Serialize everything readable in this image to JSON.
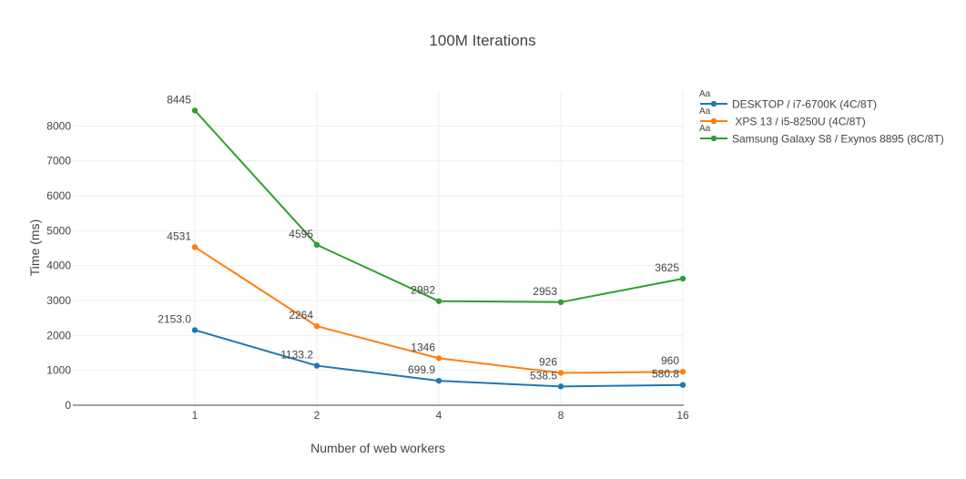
{
  "chart_data": {
    "type": "line",
    "title": "100M Iterations",
    "xlabel": "Number of web workers",
    "ylabel": "Time (ms)",
    "categories": [
      "1",
      "2",
      "4",
      "8",
      "16"
    ],
    "ylim": [
      0,
      9000
    ],
    "yticks": [
      "0",
      "1000",
      "2000",
      "3000",
      "4000",
      "5000",
      "6000",
      "7000",
      "8000"
    ],
    "ytick_values": [
      0,
      1000,
      2000,
      3000,
      4000,
      5000,
      6000,
      7000,
      8000
    ],
    "grid": true,
    "legend_position": "top-right",
    "legend_marker_text": "Aa",
    "series": [
      {
        "name": "DESKTOP / i7-6700K (4C/8T)",
        "color": "#1f77b4",
        "values": [
          2153.0,
          1133.2,
          699.9,
          538.5,
          580.8
        ],
        "labels": [
          "2153.0",
          "1133.2",
          "699.9",
          "538.5",
          "580.8"
        ]
      },
      {
        "name": " XPS 13 / i5-8250U (4C/8T)",
        "color": "#ff7f0e",
        "values": [
          4531,
          2264,
          1346,
          926,
          960
        ],
        "labels": [
          "4531",
          "2264",
          "1346",
          "926",
          "960"
        ]
      },
      {
        "name": "Samsung Galaxy S8 / Exynos 8895 (8C/8T)",
        "color": "#2ca02c",
        "values": [
          8445,
          4595,
          2982,
          2953,
          3625
        ],
        "labels": [
          "8445",
          "4595",
          "2982",
          "2953",
          "3625"
        ]
      }
    ]
  }
}
